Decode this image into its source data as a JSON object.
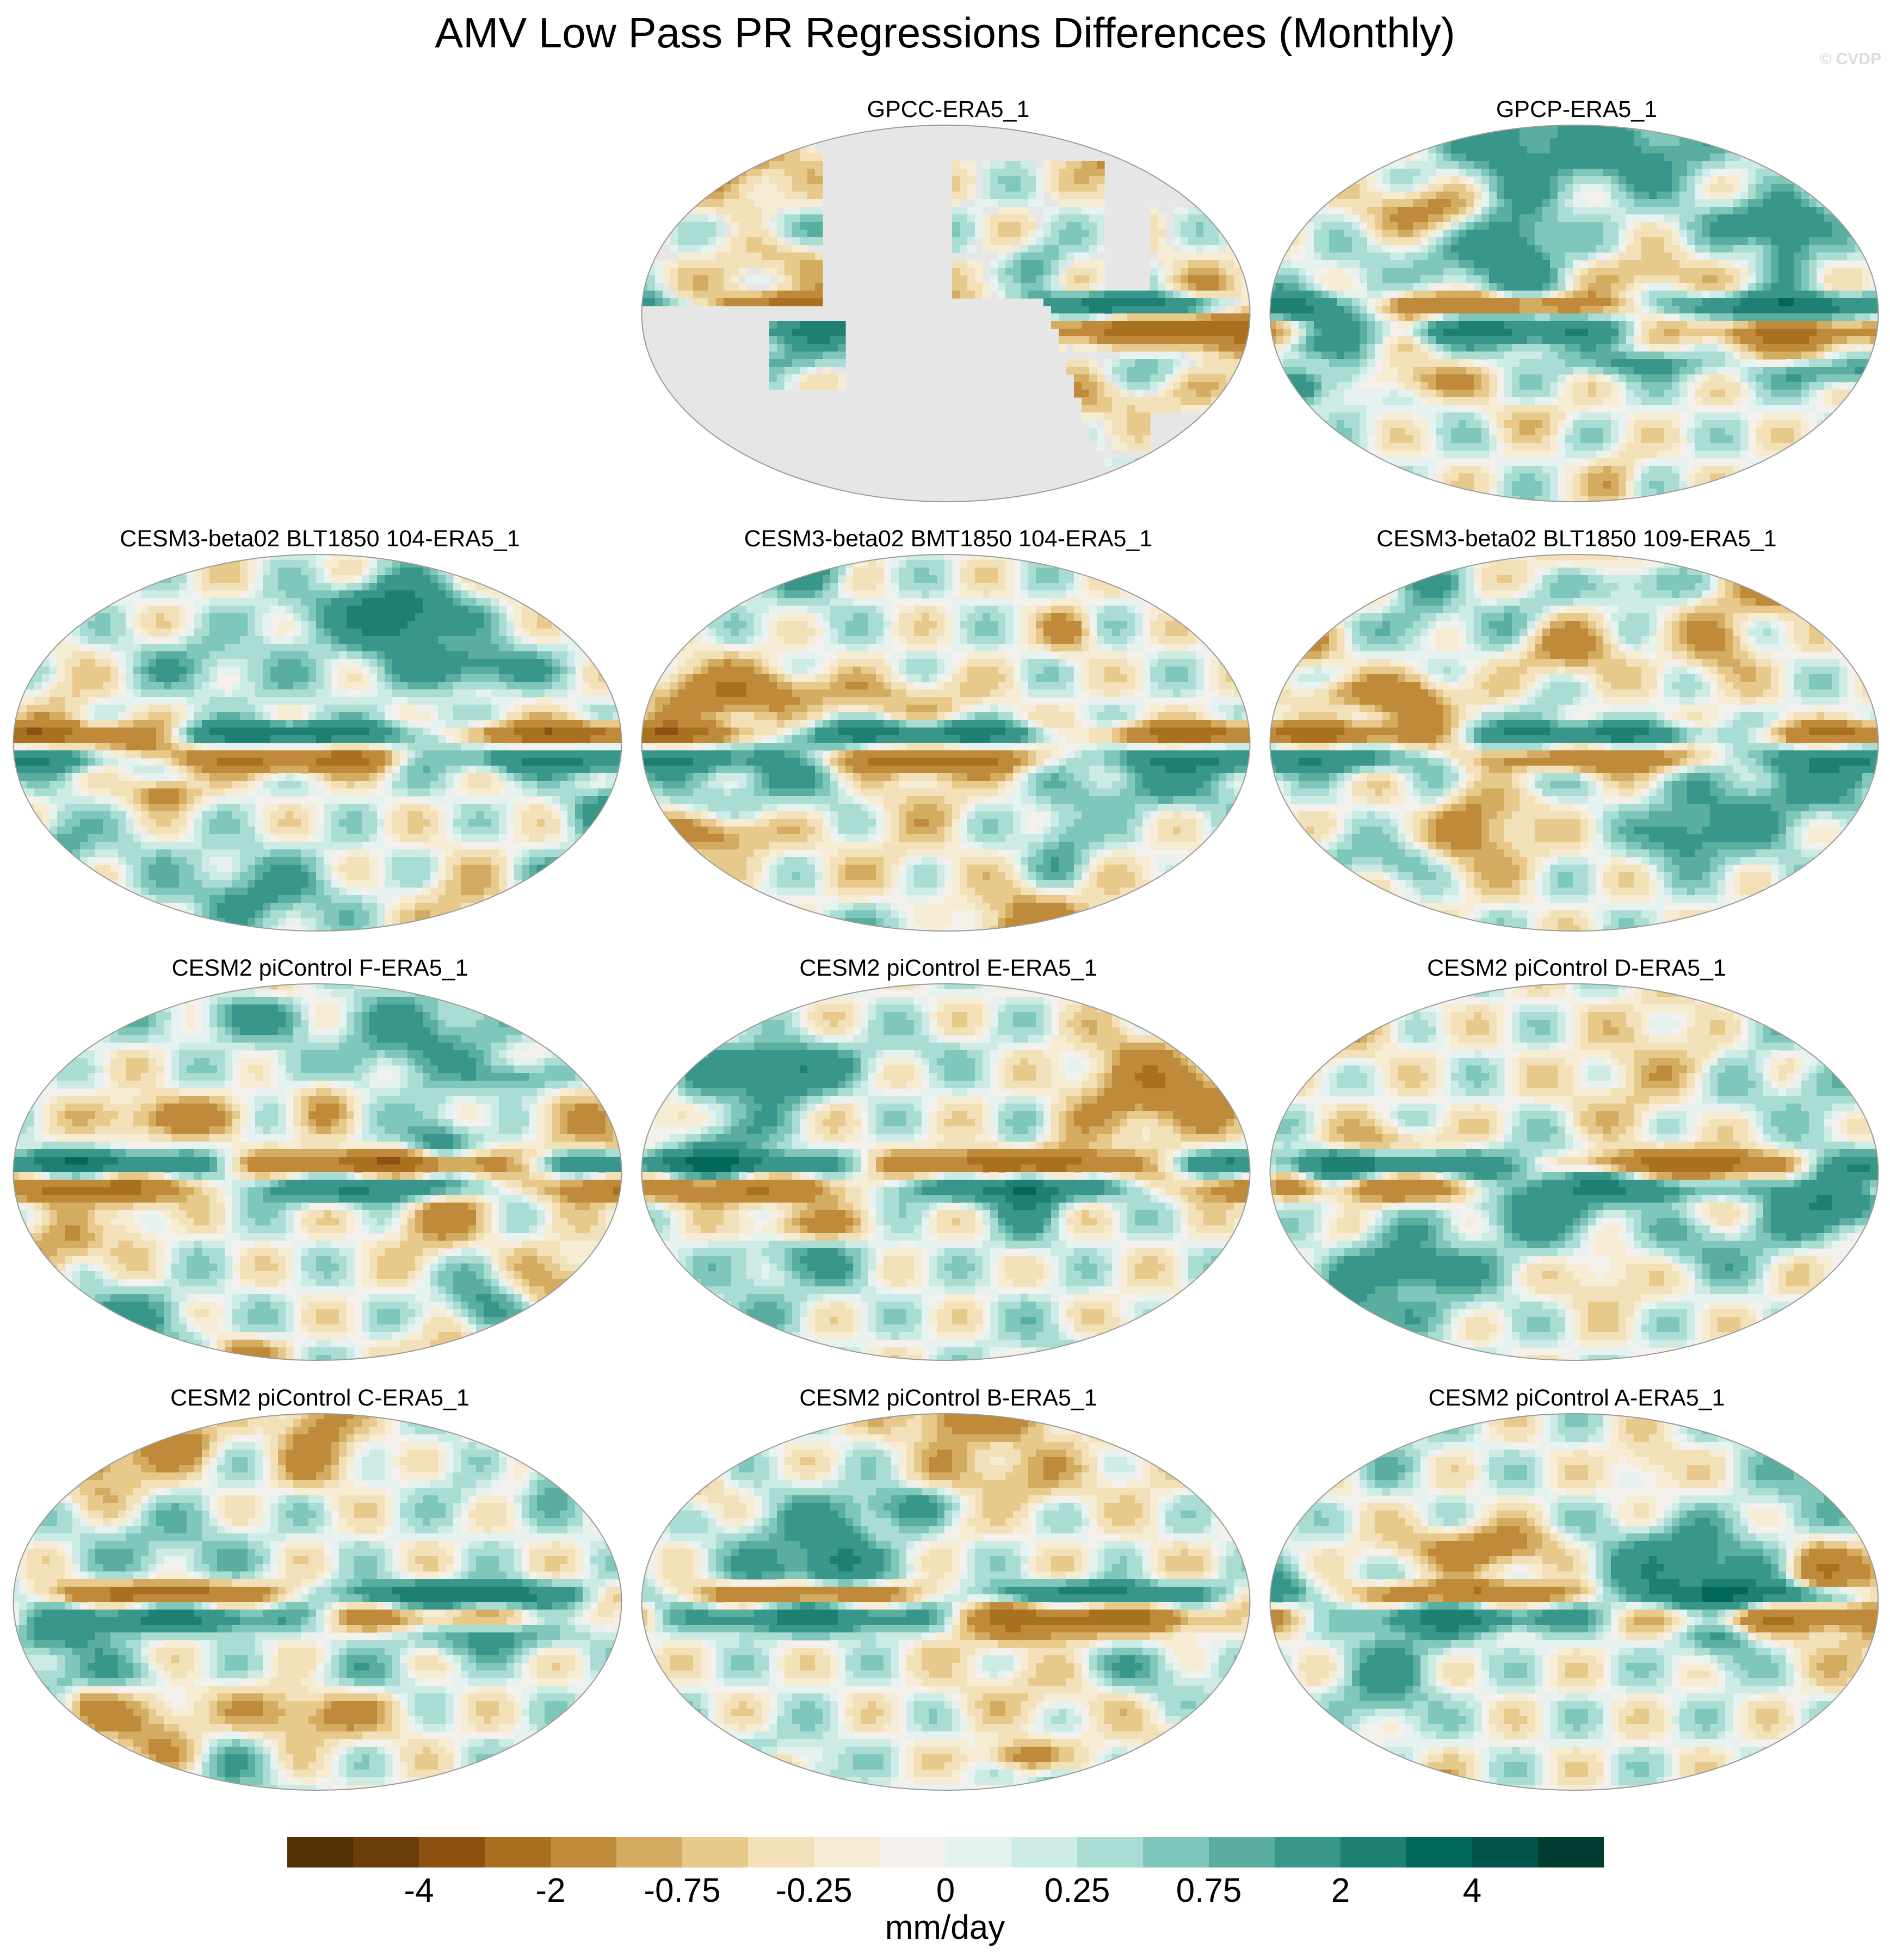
{
  "title": "AMV Low Pass PR Regressions Differences (Monthly)",
  "watermark": "© CVDP",
  "panels": [
    {
      "title": "GPCC-ERA5_1",
      "coverage": "land-only",
      "seed": 11
    },
    {
      "title": "GPCP-ERA5_1",
      "coverage": "global",
      "seed": 23
    },
    {
      "title": "CESM3-beta02 BLT1850 104-ERA5_1",
      "coverage": "global",
      "seed": 37
    },
    {
      "title": "CESM3-beta02 BMT1850 104-ERA5_1",
      "coverage": "global",
      "seed": 41
    },
    {
      "title": "CESM3-beta02 BLT1850 109-ERA5_1",
      "coverage": "global",
      "seed": 53
    },
    {
      "title": "CESM2 piControl F-ERA5_1",
      "coverage": "global",
      "seed": 67
    },
    {
      "title": "CESM2 piControl E-ERA5_1",
      "coverage": "global",
      "seed": 71
    },
    {
      "title": "CESM2 piControl D-ERA5_1",
      "coverage": "global",
      "seed": 83
    },
    {
      "title": "CESM2 piControl C-ERA5_1",
      "coverage": "global",
      "seed": 97
    },
    {
      "title": "CESM2 piControl B-ERA5_1",
      "coverage": "global",
      "seed": 101
    },
    {
      "title": "CESM2 piControl A-ERA5_1",
      "coverage": "global",
      "seed": 113
    }
  ],
  "colorbar": {
    "units": "mm/day",
    "colors": [
      "#543005",
      "#6b3d0a",
      "#8c5110",
      "#a8701f",
      "#bf8a3a",
      "#d4ac61",
      "#e6c98b",
      "#f2e1b8",
      "#f6ecd4",
      "#f4f1ec",
      "#e6f2f0",
      "#cdebe5",
      "#a9ddd4",
      "#80c7bb",
      "#5aae9f",
      "#38968a",
      "#1e7f73",
      "#03675c",
      "#01554a",
      "#003c30"
    ],
    "tick_labels": [
      "-4",
      "-2",
      "-0.75",
      "-0.25",
      "0",
      "0.25",
      "0.75",
      "2",
      "4"
    ],
    "map_background": "#e6e6e6"
  }
}
